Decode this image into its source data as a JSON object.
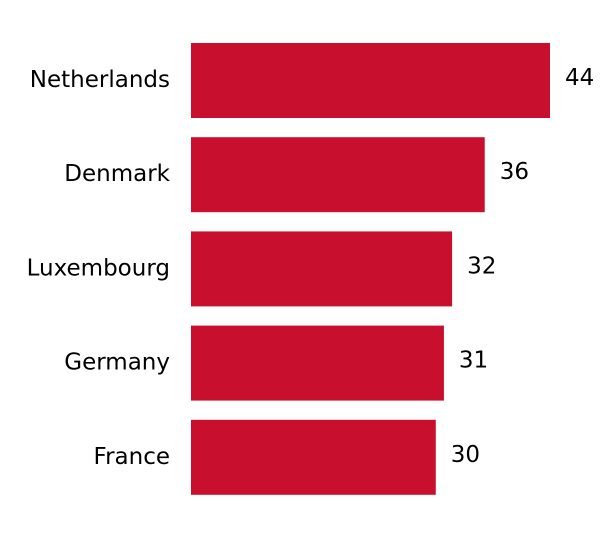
{
  "chart_data": {
    "type": "bar",
    "orientation": "horizontal",
    "categories": [
      "Netherlands",
      "Denmark",
      "Luxembourg",
      "Germany",
      "France"
    ],
    "values": [
      44,
      36,
      32,
      31,
      30
    ],
    "title": "",
    "xlabel": "",
    "ylabel": "",
    "xlim": [
      0,
      44
    ],
    "grid": false,
    "data_labels": true,
    "bar_color": "#c8102e"
  }
}
